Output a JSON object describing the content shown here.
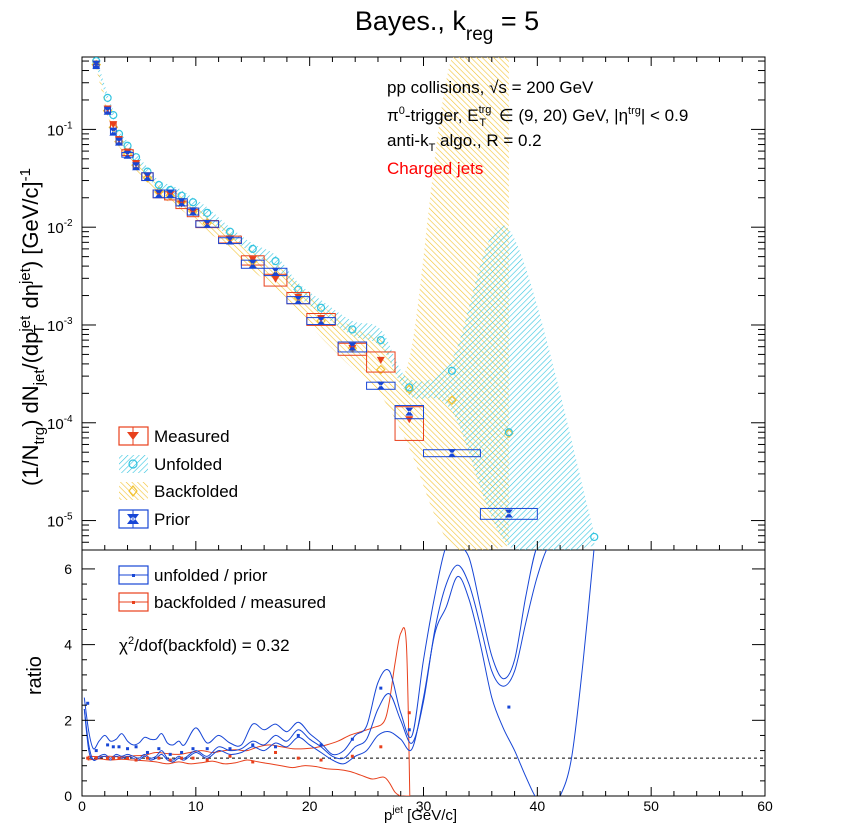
{
  "title": "Bayes., k_reg = 5",
  "title_parts": {
    "main": "Bayes., k",
    "sub": "reg",
    "tail": " = 5"
  },
  "colors": {
    "measured": "#e8401c",
    "unfolded": "#33c4e0",
    "backfolded": "#f2c230",
    "prior": "#1746d6",
    "charged_label": "#ff0000",
    "axis": "#000000"
  },
  "annotations": {
    "line1": "pp collisions, √s = 200 GeV",
    "line2": "π⁰-trigger, E_T^trg ∈ (9, 20) GeV, |η^trg| < 0.9",
    "line3": "anti-k_T algo., R = 0.2",
    "line4": "Charged jets",
    "chi2": "χ²/dof(backfold) = 0.32"
  },
  "annotation_parts": {
    "l1a": "pp collisions, ",
    "l1b": "√s",
    "l1c": " = 200 GeV",
    "l2a": "π",
    "l2b": "0",
    "l2c": "-trigger, E",
    "l2d": "trg",
    "l2e": "T",
    "l2f": " ∈ (9, 20) GeV, |η",
    "l2g": "trg",
    "l2h": "| < 0.9",
    "l3a": "anti-k",
    "l3b": "T",
    "l3c": " algo., R = 0.2",
    "chi_a": "χ",
    "chi_b": "2",
    "chi_c": "/dof(backfold) = 0.32"
  },
  "legend_top": [
    "Measured",
    "Unfolded",
    "Backfolded",
    "Prior"
  ],
  "legend_bottom": [
    "unfolded / prior",
    "backfolded / measured"
  ],
  "axes": {
    "xlabel": "p_T^jet [GeV/c]",
    "xlabel_parts": {
      "a": "p",
      "b": "jet",
      "c": " [GeV/c]"
    },
    "ylabel_top": "(1/N_trg) dN_jet/(dp_T^jet dη^jet) [GeV/c]^-1",
    "ylabel_top_parts": {
      "a": "(1/N",
      "b": "trg",
      "c": ") dN",
      "d": "jet",
      "e": "/(dp",
      "f": "jet",
      "g": "T",
      "h": " dη",
      "i": "jet",
      "j": ") [GeV/c]",
      "k": "-1"
    },
    "ylabel_bottom": "ratio",
    "x_ticks": [
      "0",
      "10",
      "20",
      "30",
      "40",
      "50",
      "60"
    ],
    "y_ticks_top": [
      "10",
      "10",
      "10",
      "10",
      "10"
    ],
    "y_ticks_top_exp": [
      "-5",
      "-4",
      "-3",
      "-2",
      "-1"
    ],
    "y_ticks_bottom": [
      "0",
      "2",
      "4",
      "6"
    ]
  },
  "chart_data": [
    {
      "type": "scatter",
      "subtitle": "spectrum (log y)",
      "xlim": [
        0,
        60
      ],
      "ylim": [
        5e-06,
        0.55
      ],
      "yscale": "log",
      "grid": false,
      "legend_position": "bottom-left",
      "series": [
        {
          "name": "Measured",
          "x": [
            1.25,
            2.25,
            2.75,
            3.25,
            4.0,
            4.75,
            5.75,
            6.75,
            7.75,
            8.75,
            9.75,
            11.0,
            13.0,
            15.0,
            17.0,
            19.0,
            21.0,
            23.75,
            26.25,
            28.75
          ],
          "y": [
            0.46,
            0.16,
            0.11,
            0.078,
            0.058,
            0.044,
            0.033,
            0.022,
            0.021,
            0.017,
            0.014,
            0.0108,
            0.0075,
            0.0046,
            0.0029,
            0.0019,
            0.00115,
            0.00057,
            0.00043,
            0.000106
          ],
          "xerr": [
            0.25,
            0.25,
            0.25,
            0.25,
            0.5,
            0.25,
            0.5,
            0.5,
            0.5,
            0.5,
            0.5,
            1.0,
            1.0,
            1.0,
            1.0,
            1.0,
            1.25,
            1.25,
            1.25,
            1.25
          ],
          "yerr_low": [
            0.0,
            0.01,
            0.01,
            0.006,
            0.004,
            0.004,
            0.003,
            0.002,
            0.002,
            0.0015,
            0.0012,
            0.0009,
            0.0006,
            0.0005,
            0.0004,
            0.00025,
            0.00016,
            8e-05,
            0.0001,
            4e-05
          ],
          "yerr_high": [
            0.0,
            0.01,
            0.01,
            0.006,
            0.004,
            0.004,
            0.003,
            0.002,
            0.002,
            0.0015,
            0.0012,
            0.0009,
            0.0006,
            0.0005,
            0.0004,
            0.00025,
            0.00016,
            8e-05,
            0.0001,
            4e-05
          ]
        },
        {
          "name": "Unfolded",
          "x": [
            1.25,
            2.25,
            2.75,
            3.25,
            4.0,
            4.75,
            5.75,
            6.75,
            7.75,
            8.75,
            9.75,
            11.0,
            13.0,
            15.0,
            17.0,
            19.0,
            21.0,
            23.75,
            26.25,
            28.75,
            32.5,
            37.5,
            45.0
          ],
          "y": [
            0.5,
            0.21,
            0.14,
            0.09,
            0.068,
            0.052,
            0.037,
            0.027,
            0.024,
            0.021,
            0.018,
            0.014,
            0.009,
            0.006,
            0.0045,
            0.0023,
            0.0015,
            0.0009,
            0.0007,
            0.00023,
            0.00034,
            8e-05,
            6.8e-06
          ],
          "band_low": [
            0.45,
            0.19,
            0.125,
            0.081,
            0.061,
            0.047,
            0.033,
            0.024,
            0.021,
            0.018,
            0.016,
            0.012,
            0.008,
            0.0053,
            0.0039,
            0.002,
            0.0013,
            0.00078,
            0.0006,
            0.00019,
            0.00013,
            5.5e-06,
            5.5e-06
          ],
          "band_high": [
            0.55,
            0.23,
            0.155,
            0.099,
            0.075,
            0.057,
            0.041,
            0.03,
            0.027,
            0.024,
            0.02,
            0.016,
            0.01,
            0.0068,
            0.0052,
            0.0027,
            0.0018,
            0.0011,
            0.0009,
            0.00028,
            0.00045,
            0.0095,
            7.5e-06
          ]
        },
        {
          "name": "Backfolded",
          "x": [
            1.25,
            2.25,
            2.75,
            3.25,
            4.0,
            4.75,
            5.75,
            6.75,
            7.75,
            8.75,
            9.75,
            11.0,
            13.0,
            15.0,
            17.0,
            19.0,
            21.0,
            23.75,
            26.25,
            28.75,
            32.5,
            37.5
          ],
          "y": [
            0.46,
            0.155,
            0.105,
            0.075,
            0.056,
            0.043,
            0.032,
            0.023,
            0.021,
            0.018,
            0.0145,
            0.011,
            0.0077,
            0.0045,
            0.0032,
            0.0019,
            0.0011,
            0.00058,
            0.00035,
            0.00022,
            0.00017,
            7.8e-05
          ],
          "band_low": [
            0.42,
            0.14,
            0.095,
            0.067,
            0.05,
            0.038,
            0.028,
            0.02,
            0.018,
            0.015,
            0.012,
            0.009,
            0.0062,
            0.0036,
            0.0024,
            0.0014,
            0.00075,
            0.00036,
            0.00019,
            5.5e-05,
            5.5e-06,
            5.5e-06
          ],
          "band_high": [
            0.5,
            0.17,
            0.115,
            0.083,
            0.062,
            0.048,
            0.036,
            0.026,
            0.024,
            0.021,
            0.017,
            0.013,
            0.0092,
            0.0056,
            0.0042,
            0.0026,
            0.0016,
            0.00095,
            0.00072,
            0.00045,
            0.55,
            0.55
          ]
        },
        {
          "name": "Prior",
          "x": [
            1.25,
            2.25,
            2.75,
            3.25,
            4.0,
            4.75,
            5.75,
            6.75,
            7.75,
            8.75,
            9.75,
            11.0,
            13.0,
            15.0,
            17.0,
            19.0,
            21.0,
            23.75,
            26.25,
            28.75,
            32.5,
            37.5
          ],
          "y": [
            0.46,
            0.155,
            0.095,
            0.075,
            0.055,
            0.042,
            0.033,
            0.022,
            0.022,
            0.018,
            0.0145,
            0.0108,
            0.0073,
            0.0042,
            0.0035,
            0.0018,
            0.0011,
            0.0006,
            0.00024,
            0.00013,
            4.9e-05,
            1.18e-05
          ],
          "xerr": [
            0.25,
            0.25,
            0.25,
            0.25,
            0.5,
            0.25,
            0.5,
            0.5,
            0.5,
            0.5,
            0.5,
            1.0,
            1.0,
            1.0,
            1.0,
            1.0,
            1.25,
            1.25,
            1.25,
            1.25,
            2.5,
            2.5
          ],
          "yerr_low": [
            0.0,
            0.008,
            0.006,
            0.005,
            0.003,
            0.003,
            0.003,
            0.002,
            0.002,
            0.0015,
            0.0012,
            0.0008,
            0.0005,
            0.0004,
            0.0003,
            0.00015,
            9e-05,
            7e-05,
            2e-05,
            2e-05,
            4e-06,
            1.5e-06
          ],
          "yerr_high": [
            0.0,
            0.008,
            0.006,
            0.005,
            0.003,
            0.003,
            0.003,
            0.002,
            0.002,
            0.0015,
            0.0012,
            0.0008,
            0.0005,
            0.0004,
            0.0003,
            0.00015,
            9e-05,
            7e-05,
            2e-05,
            2e-05,
            4e-06,
            1.5e-06
          ]
        }
      ]
    },
    {
      "type": "line",
      "subtitle": "ratio",
      "xlim": [
        0,
        60
      ],
      "ylim": [
        0,
        6.5
      ],
      "reference_line": 1,
      "legend_position": "top-left",
      "series": [
        {
          "name": "unfolded / prior",
          "x": [
            0.5,
            1.25,
            2.25,
            2.75,
            3.25,
            4.0,
            4.75,
            5.75,
            6.75,
            7.75,
            8.75,
            9.75,
            11.0,
            13.0,
            15.0,
            17.0,
            19.0,
            21.0,
            23.75,
            26.25,
            28.75,
            37.5
          ],
          "y": [
            2.45,
            1.2,
            1.35,
            1.3,
            1.3,
            1.25,
            1.3,
            1.15,
            1.25,
            1.1,
            1.15,
            1.25,
            1.25,
            1.25,
            1.35,
            1.3,
            1.6,
            1.35,
            1.5,
            2.85,
            1.75,
            2.35
          ],
          "band_x": [
            0.2,
            0.6,
            1.0,
            1.5,
            2.0,
            2.5,
            3.0,
            3.5,
            4.0,
            4.5,
            5.0,
            5.5,
            6.0,
            6.5,
            7.0,
            7.5,
            8.0,
            8.5,
            9.0,
            10.0,
            11.0,
            12.0,
            13.0,
            14.0,
            15.0,
            16.0,
            17.0,
            18.0,
            19.0,
            20.0,
            21.0,
            22.0,
            23.0,
            24.0,
            25.0,
            26.0,
            27.0,
            28.0,
            29.0,
            30.0,
            31.0,
            32.0,
            33.0,
            34.0,
            35.0,
            36.0,
            37.0,
            38.0,
            39.0,
            40.0,
            41.0,
            42.0,
            43.0,
            44.0,
            45.0
          ],
          "band_low": [
            2.3,
            1.35,
            0.95,
            1.05,
            1.1,
            1.0,
            1.1,
            1.05,
            1.1,
            1.05,
            1.0,
            1.1,
            1.0,
            1.05,
            1.2,
            1.0,
            0.95,
            1.05,
            1.0,
            1.2,
            1.05,
            1.3,
            1.2,
            1.25,
            1.45,
            1.35,
            1.6,
            1.45,
            1.75,
            1.5,
            1.3,
            1.05,
            1.0,
            1.3,
            1.5,
            2.3,
            2.7,
            2.0,
            1.4,
            2.5,
            4.4,
            5.6,
            6.1,
            5.6,
            4.5,
            3.3,
            2.9,
            3.3,
            4.6,
            5.8,
            6.6,
            6.6,
            6.6,
            6.6,
            6.6
          ],
          "band_high": [
            2.6,
            1.7,
            1.25,
            1.45,
            1.6,
            1.45,
            1.5,
            1.65,
            1.45,
            1.35,
            1.4,
            1.55,
            1.5,
            1.5,
            1.65,
            1.4,
            1.35,
            1.45,
            1.35,
            1.8,
            1.4,
            1.6,
            1.4,
            1.35,
            1.9,
            1.75,
            1.9,
            1.7,
            1.95,
            1.65,
            1.4,
            1.1,
            1.2,
            1.6,
            1.85,
            3.0,
            3.3,
            2.2,
            1.6,
            3.6,
            5.3,
            6.6,
            6.6,
            6.3,
            5.0,
            3.7,
            3.1,
            3.6,
            5.3,
            6.6,
            6.6,
            6.6,
            6.6,
            6.6,
            6.6
          ],
          "lower_curve": [
            2.3,
            1.2,
            0.95,
            1.0,
            1.05,
            0.95,
            1.05,
            1.0,
            1.05,
            1.0,
            0.95,
            1.05,
            0.95,
            1.0,
            1.1,
            0.95,
            0.9,
            1.0,
            0.95,
            1.15,
            1.0,
            1.2,
            1.1,
            1.15,
            1.3,
            1.2,
            1.4,
            1.3,
            1.55,
            1.35,
            1.15,
            0.95,
            0.85,
            1.05,
            1.2,
            1.6,
            1.7,
            1.5,
            1.25,
            2.6,
            4.3,
            5.0,
            5.8,
            5.2,
            4.0,
            2.6,
            1.8,
            1.2,
            0.5,
            -0.1,
            -0.3,
            0.0,
            1.0,
            3.5,
            6.6
          ]
        },
        {
          "name": "backfolded / measured",
          "x": [
            0.5,
            1.25,
            2.25,
            2.75,
            3.25,
            4.0,
            4.75,
            5.75,
            6.75,
            7.75,
            8.75,
            9.75,
            11.0,
            13.0,
            15.0,
            17.0,
            19.0,
            21.0,
            23.75,
            26.25,
            28.75
          ],
          "y": [
            1.0,
            1.0,
            1.0,
            1.0,
            1.0,
            1.0,
            0.95,
            1.0,
            1.0,
            0.95,
            1.0,
            1.0,
            0.95,
            1.05,
            0.9,
            1.15,
            1.0,
            0.95,
            1.05,
            1.3,
            2.2
          ],
          "band_x": [
            0.5,
            1.5,
            2.5,
            3.5,
            4.5,
            5.5,
            6.5,
            7.5,
            8.5,
            9.5,
            10.5,
            11.5,
            12.5,
            13.5,
            14.5,
            15.5,
            16.5,
            17.5,
            18.5,
            19.5,
            20.5,
            21.5,
            22.5,
            23.5,
            24.5,
            25.5,
            26.5,
            27.0,
            27.5,
            28.0,
            28.5,
            28.8
          ],
          "band_low": [
            0.95,
            0.98,
            0.95,
            0.97,
            0.95,
            0.93,
            0.9,
            0.85,
            0.9,
            0.85,
            0.88,
            0.92,
            0.85,
            0.88,
            0.95,
            0.9,
            0.85,
            0.8,
            0.75,
            0.8,
            0.78,
            0.72,
            0.7,
            0.65,
            0.55,
            0.45,
            0.5,
            0.35,
            0.1,
            0.0,
            0.0,
            0.0
          ],
          "band_high": [
            1.05,
            1.04,
            1.05,
            1.03,
            1.06,
            1.08,
            1.15,
            1.12,
            1.1,
            1.15,
            1.2,
            1.15,
            1.2,
            1.22,
            1.2,
            1.3,
            1.35,
            1.3,
            1.25,
            1.25,
            1.28,
            1.35,
            1.45,
            1.6,
            1.7,
            1.8,
            1.95,
            2.5,
            3.5,
            4.3,
            4.0,
            0.0
          ]
        }
      ]
    }
  ]
}
